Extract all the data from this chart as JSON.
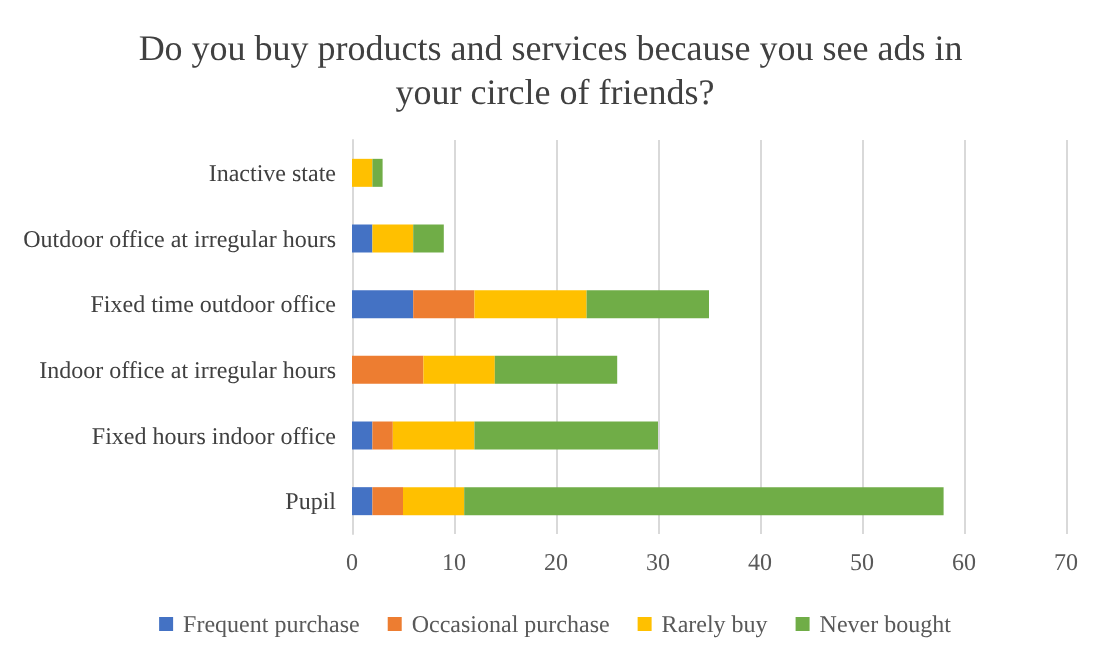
{
  "chart_data": {
    "type": "bar",
    "orientation": "horizontal",
    "stacked": true,
    "title": "Do you buy products and services because you see ads in your circle of friends?",
    "categories": [
      "Inactive state",
      "Outdoor office at irregular hours",
      "Fixed time outdoor office",
      "Indoor office at irregular hours",
      "Fixed hours indoor office",
      "Pupil"
    ],
    "series": [
      {
        "name": "Frequent purchase",
        "color": "#4472c4",
        "values": [
          0,
          2,
          6,
          0,
          2,
          2
        ]
      },
      {
        "name": "Occasional purchase",
        "color": "#ed7d31",
        "values": [
          0,
          0,
          6,
          7,
          2,
          3
        ]
      },
      {
        "name": "Rarely buy",
        "color": "#ffc000",
        "values": [
          2,
          4,
          11,
          7,
          8,
          6
        ]
      },
      {
        "name": "Never bought",
        "color": "#70ad47",
        "values": [
          1,
          3,
          12,
          12,
          18,
          47
        ]
      }
    ],
    "xlim": [
      0,
      70
    ],
    "xticks": [
      0,
      10,
      20,
      30,
      40,
      50,
      60,
      70
    ],
    "grid": "x",
    "legend": "bottom"
  }
}
